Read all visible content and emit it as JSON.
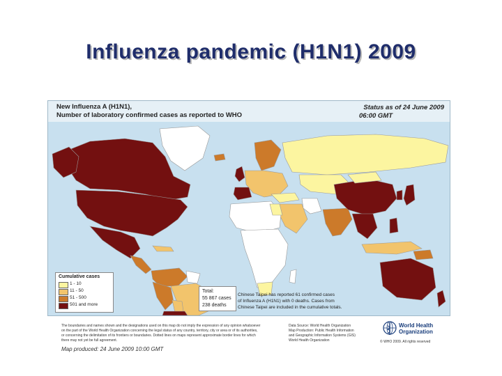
{
  "slide": {
    "title": "Influenza pandemic (H1N1) 2009"
  },
  "map": {
    "title_line1": "New Influenza A (H1N1),",
    "title_line2": "Number of  laboratory confirmed cases as reported to WHO",
    "status_line1": "Status as of 24 June 2009",
    "status_line2": "06:00 GMT",
    "colors": {
      "ocean": "#c8e0ef",
      "no_cases": "#ffffff",
      "c1_10": "#fcf5a0",
      "c11_50": "#f2c46c",
      "c51_500": "#cc7a2a",
      "c501_more": "#731010"
    }
  },
  "legend": {
    "title": "Cumulative cases",
    "items": [
      {
        "label": "1 - 10",
        "color": "#fcf5a0"
      },
      {
        "label": "11 - 50",
        "color": "#f2c46c"
      },
      {
        "label": "51 - 500",
        "color": "#cc7a2a"
      },
      {
        "label": "501 and more",
        "color": "#731010"
      }
    ]
  },
  "totals": {
    "label": "Total:",
    "cases": "55 867 cases",
    "deaths": "238 deaths"
  },
  "note": {
    "line1": "Chinese Taipei has reported 61 confirmed cases",
    "line2": "of Influenza A (H1N1) with 0 deaths. Cases from",
    "line3": "Chinese Taipei are included in the cumulative totals."
  },
  "footer": {
    "disclaimer_line1": "The boundaries and names shown and the designations used on this map do not imply the expression of any opinion whatsoever",
    "disclaimer_line2": "on the part of the World Health Organization concerning the legal status of any country, territory, city or area or of its authorities,",
    "disclaimer_line3": "or concerning the delimitation of its frontiers or boundaries. Dotted lines on maps represent approximate border lines for which",
    "disclaimer_line4": "there may not yet be full agreement.",
    "source_line1": "Data Source: World Health Organization",
    "source_line2": "Map Production: Public Health Information",
    "source_line3": "and Geographic Information Systems (GIS)",
    "source_line4": "World Health Organization",
    "who_name_line1": "World Health",
    "who_name_line2": "Organization",
    "copyright": "© WHO 2009. All rights reserved",
    "produced": "Map produced: 24 June 2009 10:00 GMT"
  }
}
